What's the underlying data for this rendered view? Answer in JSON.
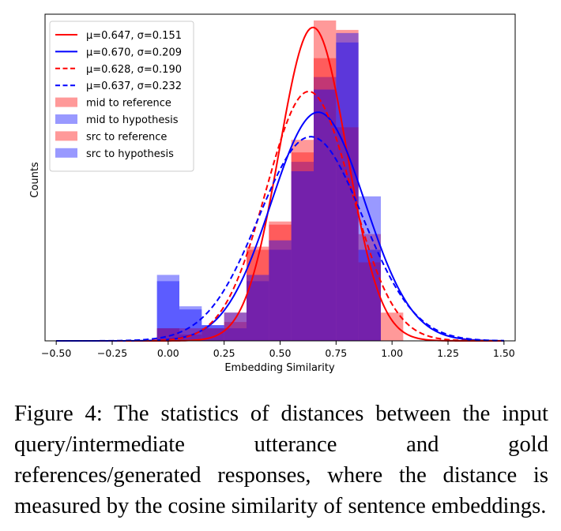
{
  "chart_data": {
    "type": "histogram",
    "xlabel": "Embedding Similarity",
    "ylabel": "Counts",
    "xlim": [
      -0.55,
      1.55
    ],
    "xticks": [
      -0.5,
      -0.25,
      0.0,
      0.25,
      0.5,
      0.75,
      1.0,
      1.25,
      1.5
    ],
    "xtick_labels": [
      "−0.50",
      "−0.25",
      "0.00",
      "0.25",
      "0.50",
      "0.75",
      "1.00",
      "1.25",
      "1.50"
    ],
    "ylim": [
      0,
      5.2
    ],
    "legend_position": "top-left",
    "bin_edges": [
      -0.05,
      0.05,
      0.15,
      0.25,
      0.35,
      0.45,
      0.55,
      0.65,
      0.75,
      0.85,
      0.95,
      1.05
    ],
    "histograms": [
      {
        "name": "mid to reference",
        "color": "#ff0000",
        "alpha": 0.4,
        "counts": [
          0.2,
          0.1,
          0.2,
          0.3,
          1.45,
          1.9,
          3.2,
          5.1,
          4.95,
          1.7,
          0.45
        ]
      },
      {
        "name": "mid to hypothesis",
        "color": "#0000ff",
        "alpha": 0.4,
        "counts": [
          1.05,
          0.5,
          0.25,
          0.2,
          0.95,
          1.45,
          2.85,
          4.2,
          4.9,
          2.3,
          0.0
        ]
      },
      {
        "name": "src to reference",
        "color": "#ff0000",
        "alpha": 0.4,
        "counts": [
          0.2,
          0.2,
          0.2,
          0.45,
          1.5,
          1.85,
          3.0,
          4.5,
          3.4,
          1.25,
          0.0
        ]
      },
      {
        "name": "src to hypothesis",
        "color": "#0000ff",
        "alpha": 0.4,
        "counts": [
          0.95,
          0.55,
          0.25,
          0.45,
          1.05,
          1.6,
          2.7,
          4.0,
          4.75,
          1.45,
          0.0
        ]
      }
    ],
    "fits": [
      {
        "label": "μ=0.647, σ=0.151",
        "mu": 0.647,
        "sigma": 0.151,
        "color": "#ff0000",
        "style": "solid",
        "peak": 4.99
      },
      {
        "label": "μ=0.670, σ=0.209",
        "mu": 0.67,
        "sigma": 0.209,
        "color": "#0000ff",
        "style": "solid",
        "peak": 3.64
      },
      {
        "label": "μ=0.628, σ=0.190",
        "mu": 0.628,
        "sigma": 0.19,
        "color": "#ff0000",
        "style": "dashed",
        "peak": 3.97
      },
      {
        "label": "μ=0.637, σ=0.232",
        "mu": 0.637,
        "sigma": 0.232,
        "color": "#0000ff",
        "style": "dashed",
        "peak": 3.25
      }
    ]
  },
  "caption": "Figure 4:  The statistics of distances between the input query/intermediate utterance and gold references/generated responses, where the distance is measured by the cosine similarity of sentence embeddings."
}
